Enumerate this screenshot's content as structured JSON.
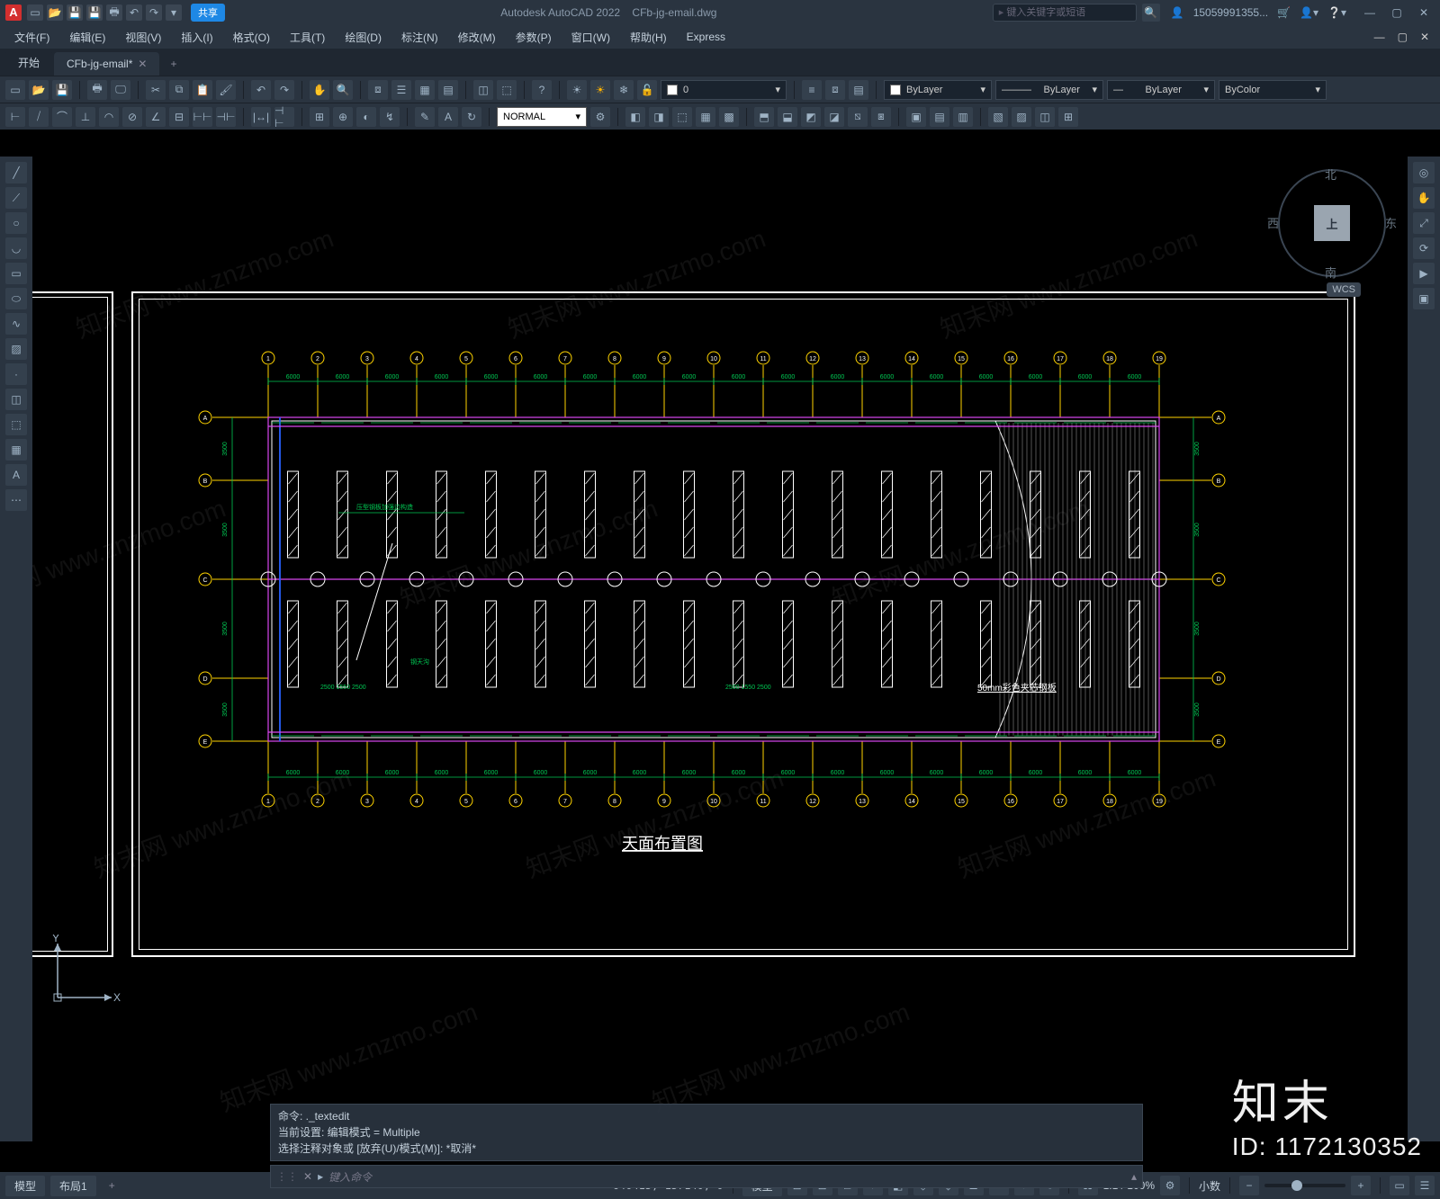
{
  "app": {
    "title_app": "Autodesk AutoCAD 2022",
    "title_file": "CFb-jg-email.dwg"
  },
  "qat_share": "共享",
  "search_placeholder": "键入关键字或短语",
  "user_name": "15059991355...",
  "menus": [
    "文件(F)",
    "编辑(E)",
    "视图(V)",
    "插入(I)",
    "格式(O)",
    "工具(T)",
    "绘图(D)",
    "标注(N)",
    "修改(M)",
    "参数(P)",
    "窗口(W)",
    "帮助(H)",
    "Express"
  ],
  "tabs": {
    "start": "开始",
    "file": "CFb-jg-email*",
    "add": "+"
  },
  "layer_zero": "0",
  "prop_bylayer": "ByLayer",
  "prop_bycolor": "ByColor",
  "style_combo": "NORMAL",
  "viewcube": {
    "face": "上",
    "n": "北",
    "s": "南",
    "e": "东",
    "w": "西",
    "wcs": "WCS"
  },
  "drawing": {
    "title": "天面布置图",
    "note": "50mm彩色夹芯钢板",
    "dim_small": "6000",
    "dim_small_alt": "3500",
    "dim_pair": "2500 1550 2500",
    "dim_pair2": "2500 1550 2500",
    "green_note1": "压型钢板加强边构造",
    "green_note2": "钢天沟"
  },
  "ucs": {
    "x": "X",
    "y": "Y"
  },
  "cmd": {
    "h1": "命令: ._textedit",
    "h2": "当前设置: 编辑模式 = Multiple",
    "h3": "选择注释对象或 [放弃(U)/模式(M)]: *取消*",
    "prompt": "▸",
    "placeholder": "键入命令"
  },
  "status": {
    "model": "模型",
    "layout1": "布局1",
    "plus": "+",
    "coords": "640415, 157140, 0",
    "label_model": "模型",
    "scale": "1:1 / 100%",
    "annoscale": "小数"
  },
  "watermark": {
    "brand": "知末",
    "id": "ID: 1172130352",
    "diag": "知末网 www.znzmo.com"
  }
}
